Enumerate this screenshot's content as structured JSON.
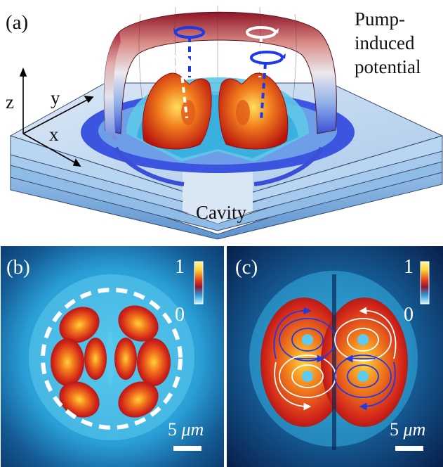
{
  "panel_a": {
    "label": "(a)",
    "pump_label_lines": [
      "Pump-",
      "induced",
      "potential"
    ],
    "cavity_label": "Cavity",
    "axis_labels": {
      "z": "z",
      "y": "y",
      "x": "x"
    },
    "colors": {
      "potential_rim_top": "#9a1d2a",
      "potential_mid": "#e9e4ea",
      "potential_base": "#2a44d8",
      "layer_light": "#c8dcf0",
      "layer_dark": "#7fb2e0",
      "lobe_core": "#ffd24a",
      "lobe_edge": "#c21d10",
      "vortex_blue": "#1e3ae6",
      "vortex_white": "#ffffff"
    }
  },
  "panel_b": {
    "label": "(b)",
    "colorbar": {
      "max": "1",
      "min": "0"
    },
    "scale_bar": {
      "value": "5",
      "unit": "μm"
    },
    "colors": {
      "background": "#0c3a6e",
      "halo": "#38b7e6",
      "lobe": "#d6281a",
      "hot": "#ffd23a",
      "dashed_ring": "#ffffff"
    }
  },
  "panel_c": {
    "label": "(c)",
    "colorbar": {
      "max": "1",
      "min": "0"
    },
    "scale_bar": {
      "value": "5",
      "unit": "μm"
    },
    "colors": {
      "background": "#08204c",
      "halo": "#38b7e6",
      "lobe": "#d6281a",
      "hot": "#ffd23a",
      "streamline_blue": "#1e3ae6",
      "streamline_white": "#ffffff"
    }
  }
}
